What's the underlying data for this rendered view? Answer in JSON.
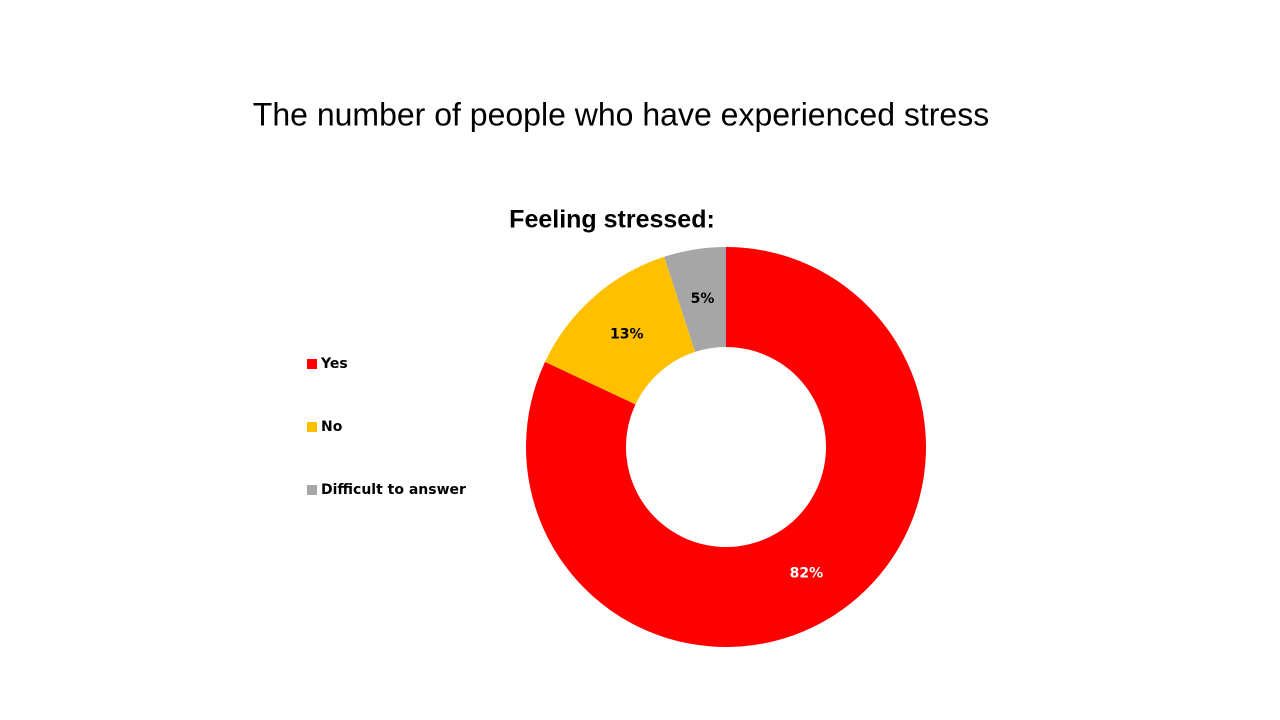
{
  "slide_title": "The number of people who have experienced stress",
  "chart_data": {
    "type": "donut",
    "title": "Feeling stressed:",
    "categories": [
      "Yes",
      "No",
      "Difficult to answer"
    ],
    "values": [
      82,
      13,
      5
    ],
    "value_labels": [
      "82%",
      "13%",
      "5%"
    ],
    "colors": [
      "#ff0000",
      "#ffc000",
      "#a6a6a6"
    ],
    "legend": "left"
  }
}
